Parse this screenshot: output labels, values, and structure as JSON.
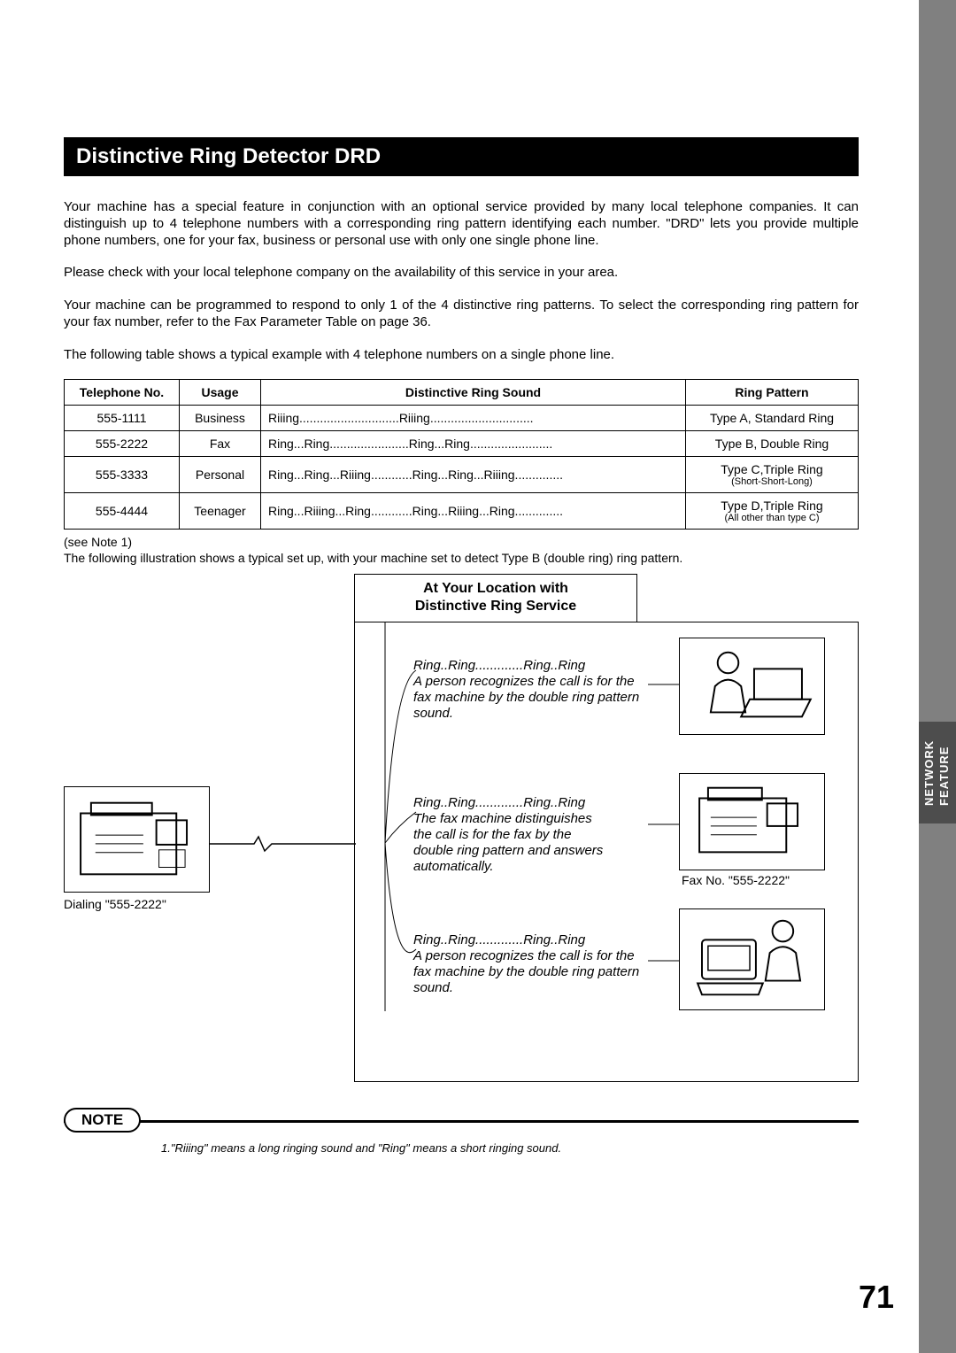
{
  "header": {
    "title": "Distinctive Ring Detector DRD"
  },
  "paragraphs": {
    "p1": "Your machine has a special feature in conjunction with an optional service provided by many local telephone companies. It can distinguish up to 4 telephone numbers with a corresponding ring pattern identifying each number. \"DRD\" lets you provide multiple phone numbers, one for your fax, business or personal use with only one single phone line.",
    "p2": "Please check with your local telephone company on the availability of this service in your area.",
    "p3": "Your machine can be programmed to respond to only 1 of the 4 distinctive ring patterns. To select the corresponding ring pattern for your fax number, refer to the Fax Parameter Table on page 36.",
    "p4": "The  following table shows a typical example with 4 telephone numbers on a single phone line."
  },
  "table": {
    "columns": {
      "tel": "Telephone No.",
      "usage": "Usage",
      "sound": "Distinctive Ring Sound",
      "pattern": "Ring Pattern"
    },
    "rows": [
      {
        "tel": "555-1111",
        "usage": "Business",
        "sound": "Riiing.............................Riiing..............................",
        "pattern": "Type A, Standard Ring",
        "sub": ""
      },
      {
        "tel": "555-2222",
        "usage": "Fax",
        "sound": "Ring...Ring.......................Ring...Ring........................",
        "pattern": "Type B, Double Ring",
        "sub": ""
      },
      {
        "tel": "555-3333",
        "usage": "Personal",
        "sound": "Ring...Ring...Riiing............Ring...Ring...Riiing..............",
        "pattern": "Type C,Triple Ring",
        "sub": "(Short-Short-Long)"
      },
      {
        "tel": "555-4444",
        "usage": "Teenager",
        "sound": "Ring...Riiing...Ring............Ring...Riiing...Ring..............",
        "pattern": "Type D,Triple Ring",
        "sub": "(All other than type C)"
      }
    ]
  },
  "seenote": " (see Note 1)",
  "caption2": "The following illustration shows a typical set up, with your machine set to detect Type B (double ring) ring pattern.",
  "diagram": {
    "location_title_l1": "At Your Location with",
    "location_title_l2": "Distinctive Ring Service",
    "sender_caption": "Dialing \"555-2222\"",
    "fax_caption": "Fax No. \"555-2222\"",
    "ring_pattern": "Ring..Ring.............Ring..Ring",
    "desc1": "A person recognizes the call is for the fax machine by the double ring pattern sound.",
    "desc2_l1": "The fax machine distinguishes",
    "desc2_l2": "the call is for the fax by the",
    "desc2_l3": "double ring pattern and answers",
    "desc2_l4": "automatically.",
    "desc3": "A person recognizes the call is for the fax machine by the double ring pattern sound."
  },
  "note": {
    "label": "NOTE",
    "text": "1.\"Riiing\" means a long ringing sound and \"Ring\" means a short ringing sound."
  },
  "page_number": "71",
  "side_tab": "NETWORK\nFEATURE",
  "colors": {
    "header_bg": "#000000",
    "header_fg": "#ffffff",
    "sidebar": "#808080",
    "sidetab": "#4d4d4d",
    "text": "#000000"
  }
}
